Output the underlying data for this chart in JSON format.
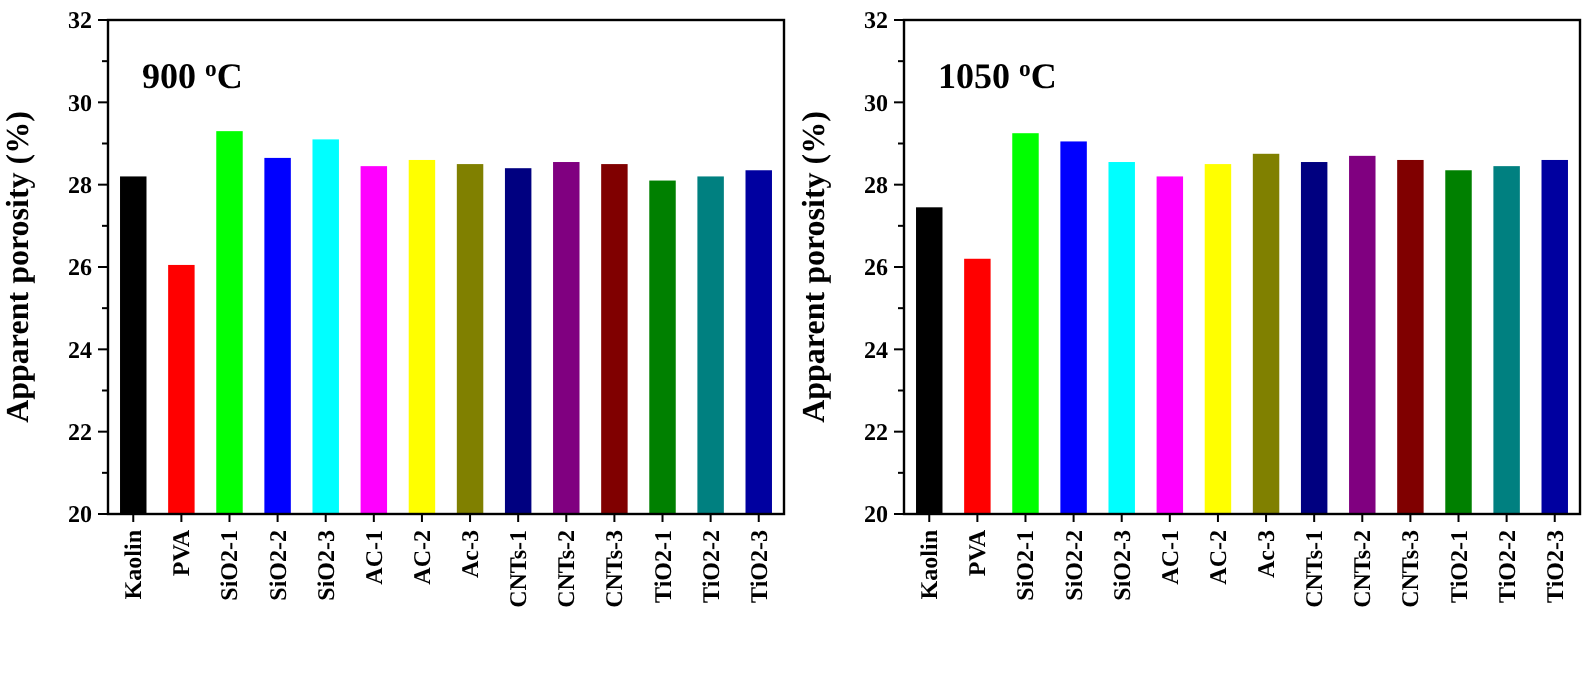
{
  "chart_data": [
    {
      "type": "bar",
      "title": "900 $^{o}$C",
      "ylabel": "Apparent porosity (%)",
      "categories": [
        "Kaolin",
        "PVA",
        "SiO2-1",
        "SiO2-2",
        "SiO2-3",
        "AC-1",
        "AC-2",
        "Ac-3",
        "CNTs-1",
        "CNTs-2",
        "CNTs-3",
        "TiO2-1",
        "TiO2-2",
        "TiO2-3"
      ],
      "values": [
        28.2,
        26.05,
        29.3,
        28.65,
        29.1,
        28.45,
        28.6,
        28.5,
        28.4,
        28.55,
        28.5,
        28.1,
        28.2,
        28.35
      ],
      "colors": [
        "#000000",
        "#ff0000",
        "#00ff00",
        "#0000ff",
        "#00ffff",
        "#ff00ff",
        "#ffff00",
        "#808000",
        "#000080",
        "#800080",
        "#800000",
        "#008000",
        "#008080",
        "#0000a0"
      ],
      "ylim": [
        20,
        32
      ],
      "yticks": [
        20,
        22,
        24,
        26,
        28,
        30,
        32
      ],
      "grid": false
    },
    {
      "type": "bar",
      "title": "1050 $^{o}$C",
      "ylabel": "Apparent porosity (%)",
      "categories": [
        "Kaolin",
        "PVA",
        "SiO2-1",
        "SiO2-2",
        "SiO2-3",
        "AC-1",
        "AC-2",
        "Ac-3",
        "CNTs-1",
        "CNTs-2",
        "CNTs-3",
        "TiO2-1",
        "TiO2-2",
        "TiO2-3"
      ],
      "values": [
        27.45,
        26.2,
        29.25,
        29.05,
        28.55,
        28.2,
        28.5,
        28.75,
        28.55,
        28.7,
        28.6,
        28.35,
        28.45,
        28.6
      ],
      "colors": [
        "#000000",
        "#ff0000",
        "#00ff00",
        "#0000ff",
        "#00ffff",
        "#ff00ff",
        "#ffff00",
        "#808000",
        "#000080",
        "#800080",
        "#800000",
        "#008000",
        "#008080",
        "#0000a0"
      ],
      "ylim": [
        20,
        32
      ],
      "yticks": [
        20,
        22,
        24,
        26,
        28,
        30,
        32
      ],
      "grid": false
    }
  ]
}
